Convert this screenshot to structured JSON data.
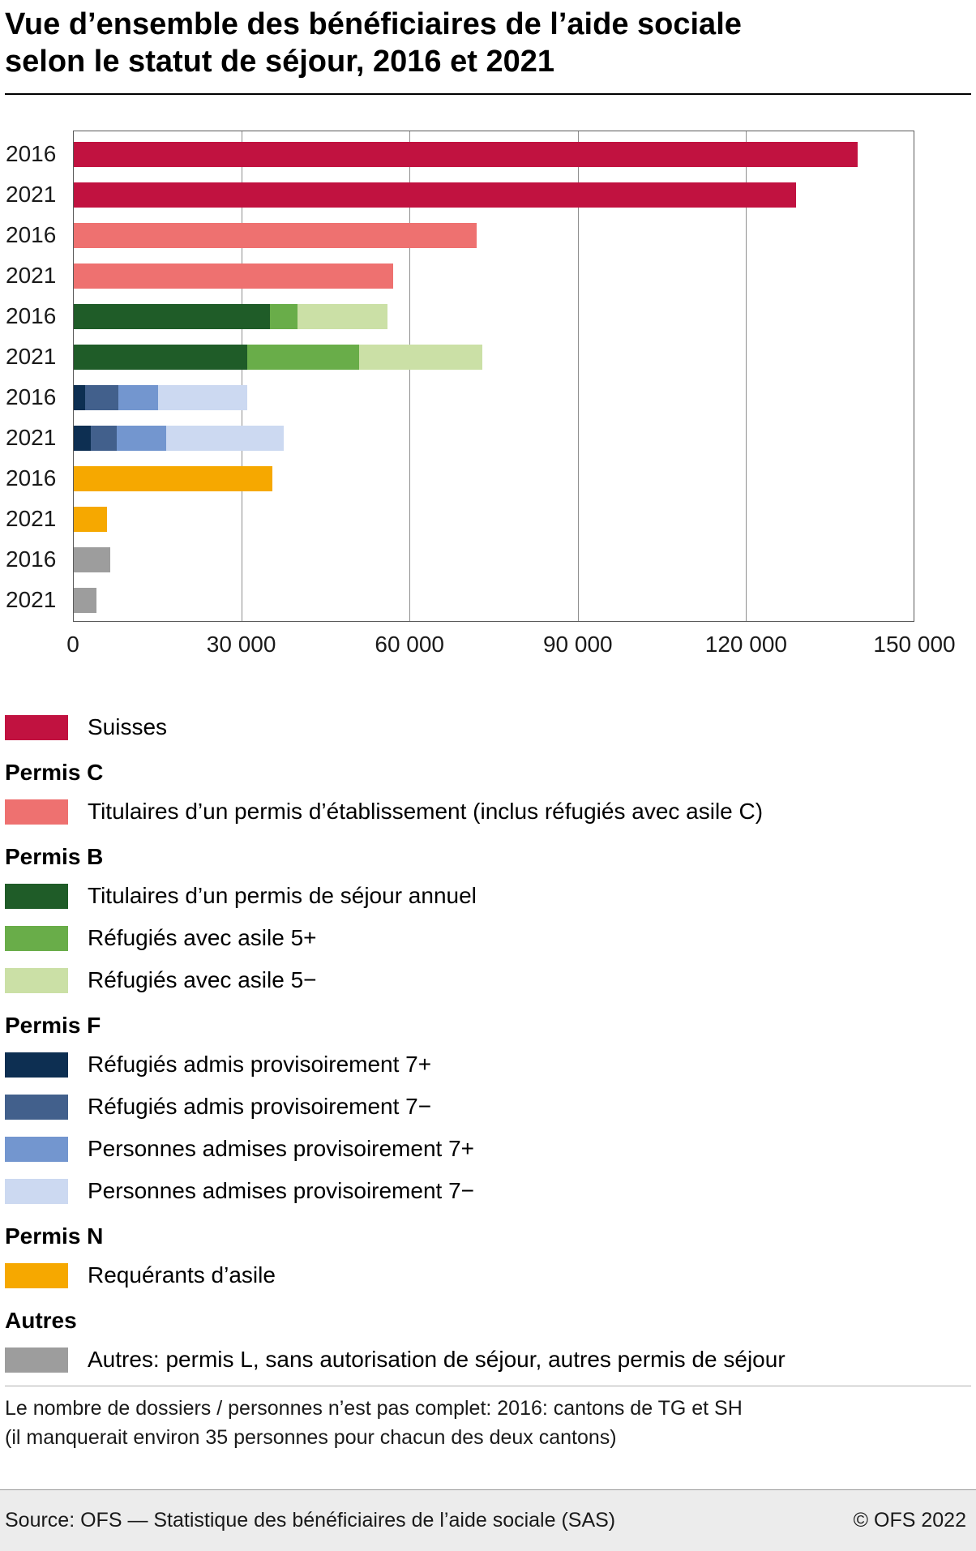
{
  "title": "Vue d’ensemble des bénéficiaires de l’aide sociale\nselon le statut de séjour, 2016 et 2021",
  "colors": {
    "suisses": "#c11240",
    "permis_c": "#ee7170",
    "permis_b_annuel": "#1f5c28",
    "refugies_asile_5plus": "#69ad49",
    "refugies_asile_5moins": "#cbe0a6",
    "refugies_prov_7plus": "#0d2f52",
    "refugies_prov_7moins": "#42608c",
    "personnes_prov_7plus": "#7396cf",
    "personnes_prov_7moins": "#ccd9f1",
    "requerants": "#f6a800",
    "autres": "#9d9d9d"
  },
  "chart_data": {
    "type": "bar",
    "orientation": "horizontal",
    "stacked": true,
    "title": "Vue d’ensemble des bénéficiaires de l’aide sociale selon le statut de séjour, 2016 et 2021",
    "xlabel": "",
    "ylabel": "",
    "legend_position": "below",
    "x_axis": {
      "min": 0,
      "max": 150000,
      "ticks": [
        "0",
        "30 000",
        "60 000",
        "90 000",
        "120 000",
        "150 000"
      ],
      "tick_values": [
        0,
        30000,
        60000,
        90000,
        120000,
        150000
      ],
      "gridlines": true
    },
    "rows": [
      {
        "group": "Suisses",
        "year": "2016",
        "segments": [
          {
            "key": "suisses",
            "value": 140000
          }
        ]
      },
      {
        "group": "Suisses",
        "year": "2021",
        "segments": [
          {
            "key": "suisses",
            "value": 129000
          }
        ]
      },
      {
        "group": "Permis C",
        "year": "2016",
        "segments": [
          {
            "key": "permis_c",
            "value": 72000
          }
        ]
      },
      {
        "group": "Permis C",
        "year": "2021",
        "segments": [
          {
            "key": "permis_c",
            "value": 57000
          }
        ]
      },
      {
        "group": "Permis B",
        "year": "2016",
        "segments": [
          {
            "key": "permis_b_annuel",
            "value": 35000
          },
          {
            "key": "refugies_asile_5plus",
            "value": 5000
          },
          {
            "key": "refugies_asile_5moins",
            "value": 16000
          }
        ]
      },
      {
        "group": "Permis B",
        "year": "2021",
        "segments": [
          {
            "key": "permis_b_annuel",
            "value": 31000
          },
          {
            "key": "refugies_asile_5plus",
            "value": 20000
          },
          {
            "key": "refugies_asile_5moins",
            "value": 22000
          }
        ]
      },
      {
        "group": "Permis F",
        "year": "2016",
        "segments": [
          {
            "key": "refugies_prov_7plus",
            "value": 2000
          },
          {
            "key": "refugies_prov_7moins",
            "value": 6000
          },
          {
            "key": "personnes_prov_7plus",
            "value": 7000
          },
          {
            "key": "personnes_prov_7moins",
            "value": 16000
          }
        ]
      },
      {
        "group": "Permis F",
        "year": "2021",
        "segments": [
          {
            "key": "refugies_prov_7plus",
            "value": 3000
          },
          {
            "key": "refugies_prov_7moins",
            "value": 4700
          },
          {
            "key": "personnes_prov_7plus",
            "value": 8800
          },
          {
            "key": "personnes_prov_7moins",
            "value": 21000
          }
        ]
      },
      {
        "group": "Permis N",
        "year": "2016",
        "segments": [
          {
            "key": "requerants",
            "value": 35500
          }
        ]
      },
      {
        "group": "Permis N",
        "year": "2021",
        "segments": [
          {
            "key": "requerants",
            "value": 6000
          }
        ]
      },
      {
        "group": "Autres",
        "year": "2016",
        "segments": [
          {
            "key": "autres",
            "value": 6500
          }
        ]
      },
      {
        "group": "Autres",
        "year": "2021",
        "segments": [
          {
            "key": "autres",
            "value": 4000
          }
        ]
      }
    ]
  },
  "legend": [
    {
      "type": "item",
      "color_key": "suisses",
      "label": "Suisses"
    },
    {
      "type": "heading",
      "label": "Permis C"
    },
    {
      "type": "item",
      "color_key": "permis_c",
      "label": "Titulaires d’un permis d’établissement (inclus réfugiés avec asile C)"
    },
    {
      "type": "heading",
      "label": "Permis B"
    },
    {
      "type": "item",
      "color_key": "permis_b_annuel",
      "label": "Titulaires d’un permis de séjour annuel"
    },
    {
      "type": "item",
      "color_key": "refugies_asile_5plus",
      "label": "Réfugiés avec asile 5+"
    },
    {
      "type": "item",
      "color_key": "refugies_asile_5moins",
      "label": "Réfugiés avec asile 5−"
    },
    {
      "type": "heading",
      "label": "Permis F"
    },
    {
      "type": "item",
      "color_key": "refugies_prov_7plus",
      "label": "Réfugiés admis provisoirement 7+"
    },
    {
      "type": "item",
      "color_key": "refugies_prov_7moins",
      "label": "Réfugiés admis provisoirement 7−"
    },
    {
      "type": "item",
      "color_key": "personnes_prov_7plus",
      "label": "Personnes admises provisoirement 7+"
    },
    {
      "type": "item",
      "color_key": "personnes_prov_7moins",
      "label": "Personnes admises provisoirement 7−"
    },
    {
      "type": "heading",
      "label": "Permis N"
    },
    {
      "type": "item",
      "color_key": "requerants",
      "label": "Requérants d’asile"
    },
    {
      "type": "heading",
      "label": "Autres"
    },
    {
      "type": "item",
      "color_key": "autres",
      "label": "Autres: permis L, sans autorisation de séjour, autres permis de séjour"
    }
  ],
  "footnote": "Le nombre de dossiers / personnes n’est pas complet: 2016: cantons de TG et SH\n(il manquerait environ 35 personnes pour chacun des deux cantons)",
  "footer": {
    "source": "Source: OFS — Statistique des bénéficiaires de l’aide sociale (SAS)",
    "copyright": "© OFS 2022"
  }
}
